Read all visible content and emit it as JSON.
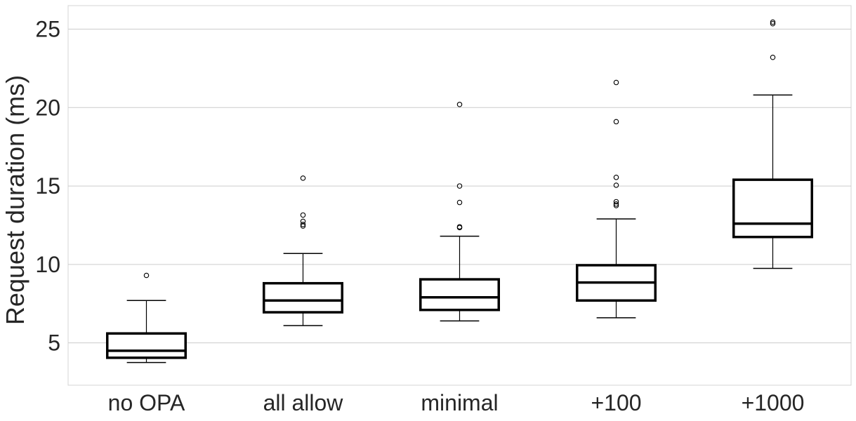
{
  "chart_data": {
    "type": "box",
    "title": "",
    "xlabel": "",
    "ylabel": "Request duration (ms)",
    "ylim": [
      2.3,
      26.5
    ],
    "yticks": [
      5,
      10,
      15,
      20,
      25
    ],
    "grid": "horizontal",
    "categories": [
      "no OPA",
      "all allow",
      "minimal",
      "+100",
      "+1000"
    ],
    "boxes": [
      {
        "label": "no OPA",
        "whisker_low": 3.75,
        "q1": 4.05,
        "median": 4.5,
        "q3": 5.6,
        "whisker_high": 7.7,
        "outliers": [
          9.3
        ]
      },
      {
        "label": "all allow",
        "whisker_low": 6.1,
        "q1": 6.95,
        "median": 7.7,
        "q3": 8.8,
        "whisker_high": 10.7,
        "outliers": [
          12.45,
          12.55,
          12.75,
          13.15,
          15.5
        ]
      },
      {
        "label": "minimal",
        "whisker_low": 6.4,
        "q1": 7.1,
        "median": 7.9,
        "q3": 9.05,
        "whisker_high": 11.8,
        "outliers": [
          12.35,
          12.4,
          13.95,
          15.0,
          20.2
        ]
      },
      {
        "label": "+100",
        "whisker_low": 6.6,
        "q1": 7.7,
        "median": 8.85,
        "q3": 9.95,
        "whisker_high": 12.9,
        "outliers": [
          13.75,
          13.85,
          14.0,
          15.05,
          15.55,
          19.1,
          21.6
        ]
      },
      {
        "label": "+1000",
        "whisker_low": 9.75,
        "q1": 11.75,
        "median": 12.6,
        "q3": 15.4,
        "whisker_high": 20.8,
        "outliers": [
          23.2,
          25.35,
          25.45
        ]
      }
    ]
  }
}
